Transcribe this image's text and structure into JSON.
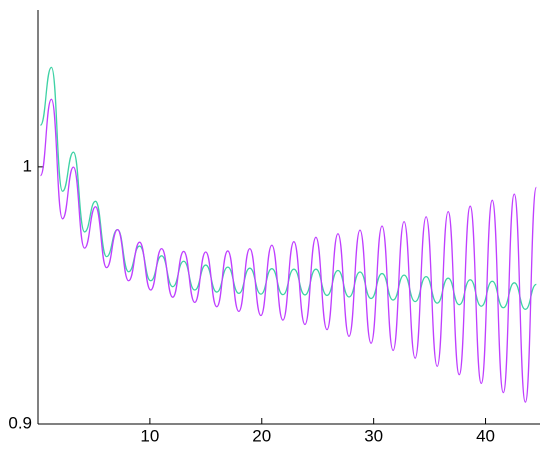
{
  "chart_data": {
    "type": "line",
    "x": [
      0.22,
      1.2,
      2.19,
      3.17,
      4.16,
      5.14,
      6.13,
      7.11,
      8.1,
      9.08,
      10.07,
      11.05,
      12.04,
      13.02,
      14.01,
      14.99,
      15.98,
      16.96,
      17.95,
      18.93,
      19.92,
      20.9,
      21.89,
      22.87,
      23.86,
      24.84,
      25.83,
      26.81,
      27.8,
      28.78,
      29.77,
      30.75,
      31.74,
      32.72,
      33.71,
      34.69,
      35.68,
      36.66,
      37.65,
      38.63,
      39.62,
      40.6,
      41.59,
      42.57,
      43.56,
      44.54
    ],
    "series": [
      {
        "color": "#3fd2a5",
        "values": [
          1.0162,
          1.0387,
          0.9905,
          1.0057,
          0.9747,
          0.9866,
          0.9651,
          0.9756,
          0.9592,
          0.9692,
          0.9557,
          0.9654,
          0.9534,
          0.9633,
          0.9521,
          0.9618,
          0.9513,
          0.961,
          0.9508,
          0.9606,
          0.9505,
          0.9604,
          0.9503,
          0.9602,
          0.9502,
          0.9602,
          0.95,
          0.9597,
          0.9494,
          0.9591,
          0.9488,
          0.9585,
          0.9482,
          0.9579,
          0.9476,
          0.9573,
          0.947,
          0.9567,
          0.9464,
          0.9561,
          0.9458,
          0.9555,
          0.9452,
          0.9549,
          0.9446,
          0.9543
        ]
      },
      {
        "color": "#bf3fff",
        "values": [
          0.9966,
          1.0263,
          0.9798,
          0.9999,
          0.9684,
          0.9845,
          0.9608,
          0.9756,
          0.9557,
          0.9707,
          0.9521,
          0.9682,
          0.9493,
          0.9671,
          0.9473,
          0.9669,
          0.9456,
          0.9673,
          0.9438,
          0.9682,
          0.9422,
          0.9695,
          0.9404,
          0.9709,
          0.9387,
          0.9726,
          0.9367,
          0.974,
          0.9341,
          0.9754,
          0.9314,
          0.977,
          0.9286,
          0.9787,
          0.9256,
          0.9806,
          0.9224,
          0.9826,
          0.9192,
          0.9847,
          0.9158,
          0.987,
          0.9122,
          0.9894,
          0.9085,
          0.992
        ]
      }
    ],
    "xlim": [
      0,
      44.6
    ],
    "xticks": [
      10,
      20,
      30,
      40
    ],
    "ylim": [
      0.9,
      1.061
    ],
    "yticks": [
      0.9,
      1
    ]
  }
}
